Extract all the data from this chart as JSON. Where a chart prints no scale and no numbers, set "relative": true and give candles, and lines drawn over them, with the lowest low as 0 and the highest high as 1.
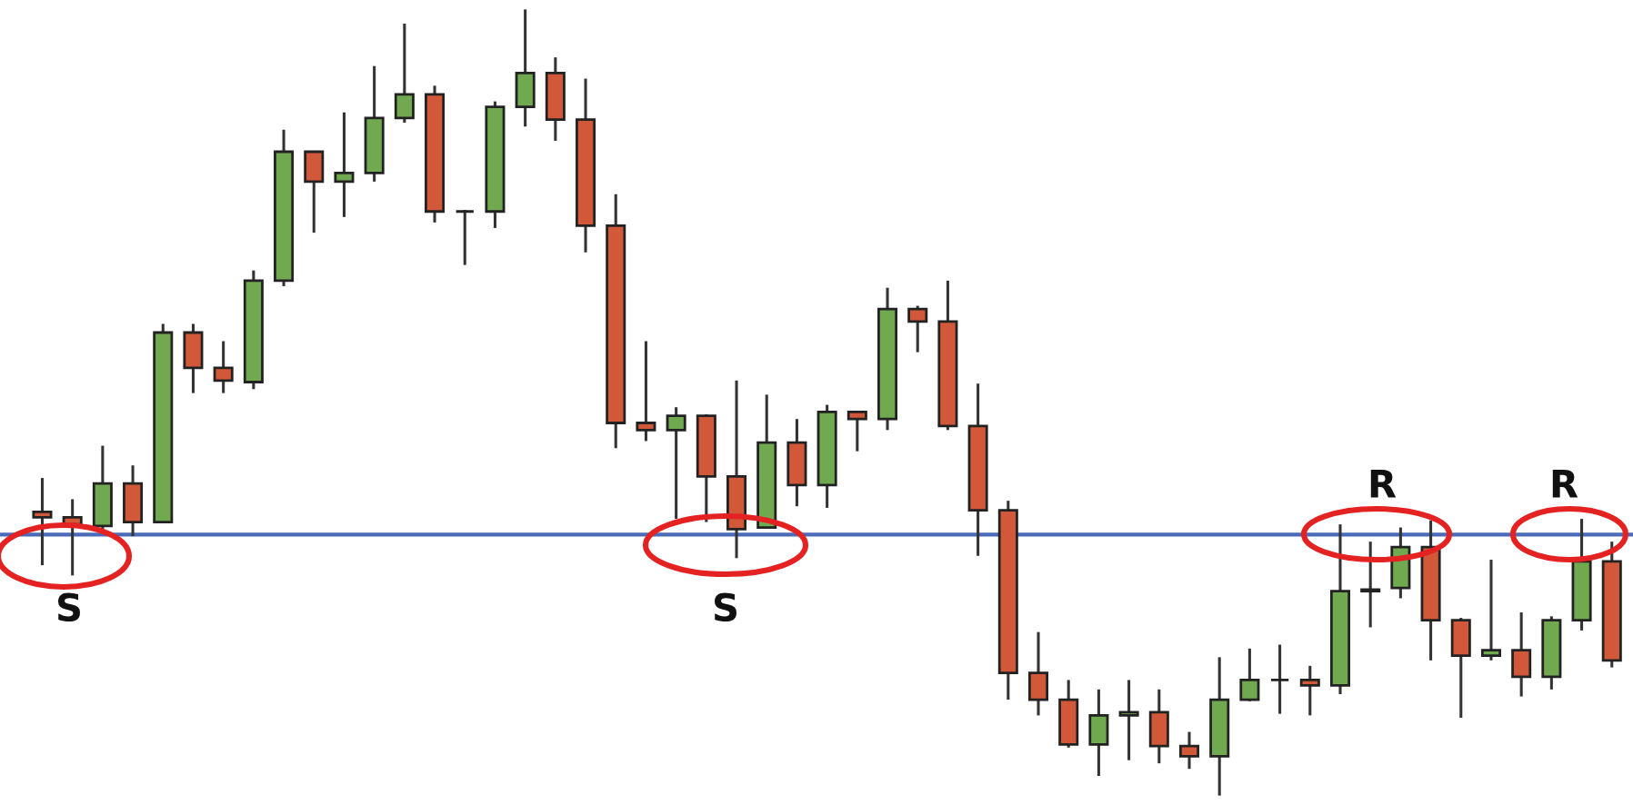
{
  "chart_data": {
    "type": "candlestick",
    "relative": true,
    "categories": [
      null,
      null,
      null,
      null,
      null,
      null,
      null,
      null,
      null,
      null,
      null,
      null,
      null,
      null,
      null,
      null,
      null,
      null,
      null,
      null,
      null,
      null,
      null,
      null,
      null,
      null,
      null,
      null,
      null,
      null,
      null,
      null,
      null,
      null,
      null,
      null,
      null,
      null,
      null,
      null,
      null,
      null,
      null,
      null,
      null,
      null,
      null,
      null,
      null,
      null,
      null,
      null,
      null
    ],
    "ohlc": [
      [
        0.361,
        0.404,
        0.293,
        0.354
      ],
      [
        0.354,
        0.377,
        0.28,
        0.345
      ],
      [
        0.343,
        0.445,
        0.334,
        0.397
      ],
      [
        0.397,
        0.42,
        0.33,
        0.348
      ],
      [
        0.348,
        0.6,
        0.348,
        0.589
      ],
      [
        0.589,
        0.6,
        0.512,
        0.544
      ],
      [
        0.544,
        0.578,
        0.512,
        0.528
      ],
      [
        0.526,
        0.668,
        0.517,
        0.655
      ],
      [
        0.655,
        0.847,
        0.648,
        0.819
      ],
      [
        0.819,
        0.819,
        0.716,
        0.781
      ],
      [
        0.781,
        0.869,
        0.736,
        0.792
      ],
      [
        0.792,
        0.928,
        0.781,
        0.862
      ],
      [
        0.862,
        0.982,
        0.856,
        0.892
      ],
      [
        0.892,
        0.903,
        0.729,
        0.743
      ],
      [
        0.743,
        0.745,
        0.675,
        0.743
      ],
      [
        0.743,
        0.883,
        0.722,
        0.876
      ],
      [
        0.876,
        1.0,
        0.851,
        0.919
      ],
      [
        0.919,
        0.939,
        0.833,
        0.86
      ],
      [
        0.86,
        0.912,
        0.691,
        0.725
      ],
      [
        0.725,
        0.765,
        0.442,
        0.474
      ],
      [
        0.474,
        0.578,
        0.451,
        0.465
      ],
      [
        0.465,
        0.494,
        0.352,
        0.483
      ],
      [
        0.483,
        0.485,
        0.348,
        0.406
      ],
      [
        0.406,
        0.528,
        0.302,
        0.339
      ],
      [
        0.341,
        0.51,
        0.341,
        0.449
      ],
      [
        0.449,
        0.479,
        0.368,
        0.395
      ],
      [
        0.395,
        0.497,
        0.366,
        0.488
      ],
      [
        0.488,
        0.488,
        0.438,
        0.479
      ],
      [
        0.479,
        0.646,
        0.465,
        0.619
      ],
      [
        0.619,
        0.623,
        0.564,
        0.603
      ],
      [
        0.603,
        0.655,
        0.465,
        0.47
      ],
      [
        0.47,
        0.524,
        0.305,
        0.363
      ],
      [
        0.363,
        0.375,
        0.122,
        0.156
      ],
      [
        0.156,
        0.208,
        0.102,
        0.122
      ],
      [
        0.122,
        0.147,
        0.061,
        0.065
      ],
      [
        0.065,
        0.135,
        0.025,
        0.102
      ],
      [
        0.102,
        0.147,
        0.045,
        0.106
      ],
      [
        0.106,
        0.135,
        0.041,
        0.063
      ],
      [
        0.063,
        0.081,
        0.034,
        0.05
      ],
      [
        0.05,
        0.176,
        0.0,
        0.122
      ],
      [
        0.122,
        0.187,
        0.12,
        0.147
      ],
      [
        0.147,
        0.192,
        0.104,
        0.147
      ],
      [
        0.147,
        0.165,
        0.102,
        0.14
      ],
      [
        0.14,
        0.345,
        0.129,
        0.26
      ],
      [
        0.26,
        0.323,
        0.214,
        0.262
      ],
      [
        0.264,
        0.341,
        0.251,
        0.316
      ],
      [
        0.316,
        0.35,
        0.172,
        0.223
      ],
      [
        0.223,
        0.226,
        0.099,
        0.178
      ],
      [
        0.178,
        0.3,
        0.172,
        0.185
      ],
      [
        0.185,
        0.233,
        0.126,
        0.151
      ],
      [
        0.151,
        0.228,
        0.135,
        0.223
      ],
      [
        0.223,
        0.352,
        0.21,
        0.298
      ],
      [
        0.298,
        0.323,
        0.163,
        0.172
      ]
    ],
    "colors": [
      "#d2583a",
      "#d2583a",
      "#70a950",
      "#d2583a",
      "#70a950",
      "#d2583a",
      "#d2583a",
      "#70a950",
      "#70a950",
      "#d2583a",
      "#70a950",
      "#70a950",
      "#70a950",
      "#d2583a",
      "#222222",
      "#70a950",
      "#70a950",
      "#d2583a",
      "#d2583a",
      "#d2583a",
      "#d2583a",
      "#70a950",
      "#d2583a",
      "#d2583a",
      "#70a950",
      "#d2583a",
      "#70a950",
      "#d2583a",
      "#70a950",
      "#d2583a",
      "#d2583a",
      "#d2583a",
      "#d2583a",
      "#d2583a",
      "#d2583a",
      "#70a950",
      "#70a950",
      "#d2583a",
      "#d2583a",
      "#70a950",
      "#70a950",
      "#222222",
      "#d2583a",
      "#70a950",
      "#70a950",
      "#70a950",
      "#d2583a",
      "#d2583a",
      "#70a950",
      "#d2583a",
      "#70a950",
      "#70a950",
      "#d2583a"
    ],
    "ref_lines": [
      {
        "axis": "y",
        "value": 0.332,
        "color": "#4a6cb8"
      }
    ],
    "annotations": [
      "S",
      "S",
      "R",
      "R"
    ]
  }
}
